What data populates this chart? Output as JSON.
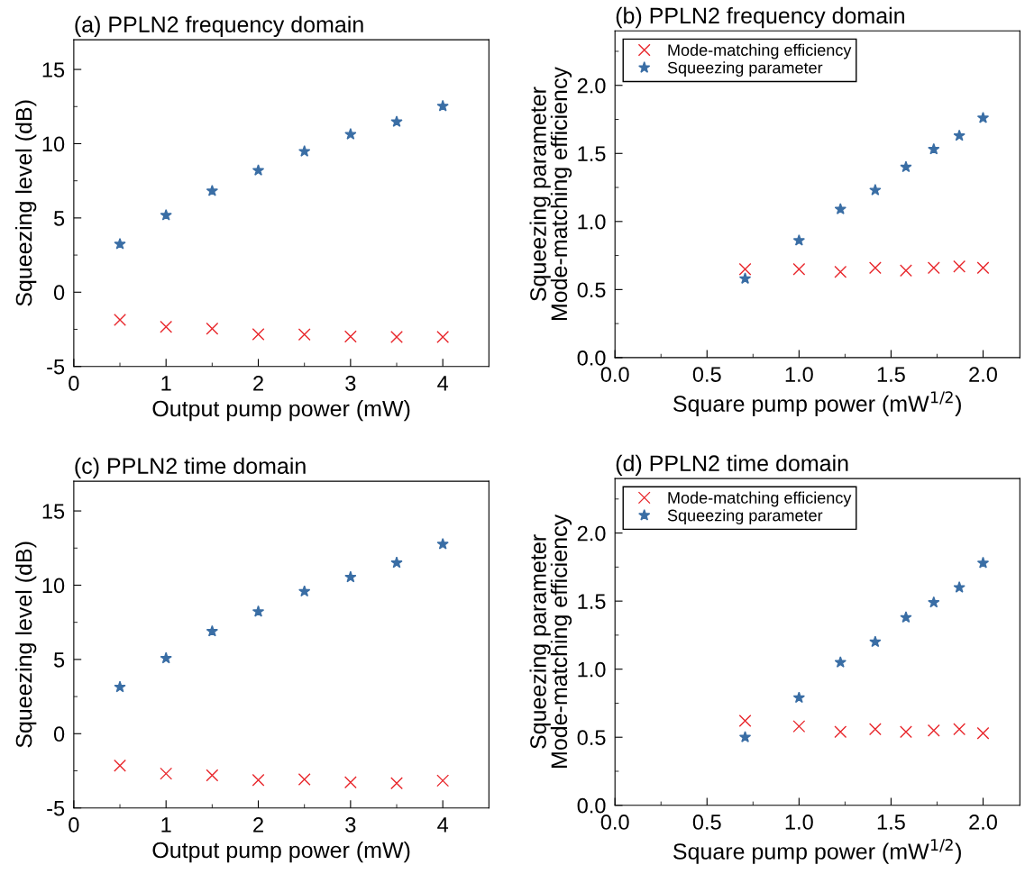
{
  "chart_data": [
    {
      "type": "scatter",
      "title": "(a) PPLN2 frequency domain",
      "xlabel": "Output pump power (mW)",
      "ylabel": "Squeezing level (dB)",
      "x": [
        0.5,
        1,
        1.5,
        2,
        2.5,
        3,
        3.5,
        4
      ],
      "series": [
        {
          "color": "#3a6ea5",
          "marker": "star",
          "values": [
            3.24,
            5.18,
            6.82,
            8.2,
            9.48,
            10.63,
            11.47,
            12.53
          ]
        },
        {
          "color": "#e8262b",
          "marker": "cross",
          "values": [
            -1.86,
            -2.33,
            -2.46,
            -2.83,
            -2.85,
            -2.98,
            -3.02,
            -3.02
          ]
        }
      ],
      "xlim": [
        0,
        4.5
      ],
      "xticks": [
        0,
        {
          "value": 0.5,
          "label": null
        },
        1,
        {
          "value": 1.5,
          "label": null
        },
        2,
        {
          "value": 2.5,
          "label": null
        },
        3,
        {
          "value": 3.5,
          "label": null
        },
        4
      ],
      "ylim": [
        -5,
        17
      ],
      "yticks": [
        -5,
        {
          "value": -2.5,
          "label": null
        },
        0,
        {
          "value": 2.5,
          "label": null
        },
        5,
        {
          "value": 7.5,
          "label": null
        },
        10,
        {
          "value": 12.5,
          "label": null
        },
        15
      ],
      "grid": false,
      "legend": false
    },
    {
      "type": "scatter",
      "title": "(b) PPLN2 frequency domain",
      "xlabel": "Square pump power (mW$^{1/2}$)",
      "ylabel": "Squeezing parameter\nMode-matching efficiency",
      "x": [
        0.707,
        1,
        1.225,
        1.414,
        1.581,
        1.732,
        1.871,
        2
      ],
      "series": [
        {
          "name": "Mode-matching efficiency",
          "color": "#e8262b",
          "marker": "cross",
          "values": [
            0.65,
            0.65,
            0.63,
            0.66,
            0.64,
            0.66,
            0.67,
            0.66
          ]
        },
        {
          "name": "Squeezing parameter",
          "color": "#3a6ea5",
          "marker": "star",
          "values": [
            0.58,
            0.86,
            1.09,
            1.23,
            1.4,
            1.53,
            1.63,
            1.76
          ]
        }
      ],
      "xlim": [
        0,
        2.2
      ],
      "xticks": [
        {
          "value": 0,
          "label": "0.0"
        },
        {
          "value": 0.25,
          "label": null
        },
        0.5,
        {
          "value": 0.75,
          "label": null
        },
        {
          "value": 1,
          "label": "1.0"
        },
        {
          "value": 1.25,
          "label": null
        },
        1.5,
        {
          "value": 1.75,
          "label": null
        },
        {
          "value": 2,
          "label": "2.0"
        }
      ],
      "ylim": [
        0,
        2.4
      ],
      "yticks": [
        {
          "value": 0,
          "label": "0.0"
        },
        {
          "value": 0.25,
          "label": null
        },
        0.5,
        {
          "value": 0.75,
          "label": null
        },
        {
          "value": 1,
          "label": "1.0"
        },
        {
          "value": 1.25,
          "label": null
        },
        1.5,
        {
          "value": 1.75,
          "label": null
        },
        {
          "value": 2,
          "label": "2.0"
        },
        {
          "value": 2.25,
          "label": null
        }
      ],
      "grid": false,
      "legend": "top left"
    },
    {
      "type": "scatter",
      "title": "(c) PPLN2 time domain",
      "xlabel": "Output pump power (mW)",
      "ylabel": "Squeezing level (dB)",
      "x": [
        0.5,
        1,
        1.5,
        2,
        2.5,
        3,
        3.5,
        4
      ],
      "series": [
        {
          "color": "#3a6ea5",
          "marker": "star",
          "values": [
            3.14,
            5.08,
            6.89,
            8.22,
            9.58,
            10.54,
            11.51,
            12.76
          ]
        },
        {
          "color": "#e8262b",
          "marker": "cross",
          "values": [
            -2.15,
            -2.69,
            -2.8,
            -3.12,
            -3.08,
            -3.27,
            -3.34,
            -3.16
          ]
        }
      ],
      "xlim": [
        0,
        4.5
      ],
      "xticks": [
        0,
        {
          "value": 0.5,
          "label": null
        },
        1,
        {
          "value": 1.5,
          "label": null
        },
        2,
        {
          "value": 2.5,
          "label": null
        },
        3,
        {
          "value": 3.5,
          "label": null
        },
        4
      ],
      "ylim": [
        -5,
        17
      ],
      "yticks": [
        -5,
        {
          "value": -2.5,
          "label": null
        },
        0,
        {
          "value": 2.5,
          "label": null
        },
        5,
        {
          "value": 7.5,
          "label": null
        },
        10,
        {
          "value": 12.5,
          "label": null
        },
        15
      ],
      "grid": false,
      "legend": false
    },
    {
      "type": "scatter",
      "title": "(d) PPLN2 time domain",
      "xlabel": "Square pump power (mW$^{1/2}$)",
      "ylabel": "Squeezing parameter\nMode-matching efficiency",
      "x": [
        0.707,
        1,
        1.225,
        1.414,
        1.581,
        1.732,
        1.871,
        2
      ],
      "series": [
        {
          "name": "Mode-matching efficiency",
          "color": "#e8262b",
          "marker": "cross",
          "values": [
            0.62,
            0.58,
            0.54,
            0.56,
            0.54,
            0.55,
            0.56,
            0.53
          ]
        },
        {
          "name": "Squeezing parameter",
          "color": "#3a6ea5",
          "marker": "star",
          "values": [
            0.5,
            0.79,
            1.05,
            1.2,
            1.38,
            1.49,
            1.6,
            1.78
          ]
        }
      ],
      "xlim": [
        0,
        2.2
      ],
      "xticks": [
        {
          "value": 0,
          "label": "0.0"
        },
        {
          "value": 0.25,
          "label": null
        },
        0.5,
        {
          "value": 0.75,
          "label": null
        },
        {
          "value": 1,
          "label": "1.0"
        },
        {
          "value": 1.25,
          "label": null
        },
        1.5,
        {
          "value": 1.75,
          "label": null
        },
        {
          "value": 2,
          "label": "2.0"
        }
      ],
      "ylim": [
        0,
        2.4
      ],
      "yticks": [
        {
          "value": 0,
          "label": "0.0"
        },
        {
          "value": 0.25,
          "label": null
        },
        0.5,
        {
          "value": 0.75,
          "label": null
        },
        {
          "value": 1,
          "label": "1.0"
        },
        {
          "value": 1.25,
          "label": null
        },
        1.5,
        {
          "value": 1.75,
          "label": null
        },
        {
          "value": 2,
          "label": "2.0"
        },
        {
          "value": 2.25,
          "label": null
        }
      ],
      "grid": false,
      "legend": "top left"
    }
  ]
}
